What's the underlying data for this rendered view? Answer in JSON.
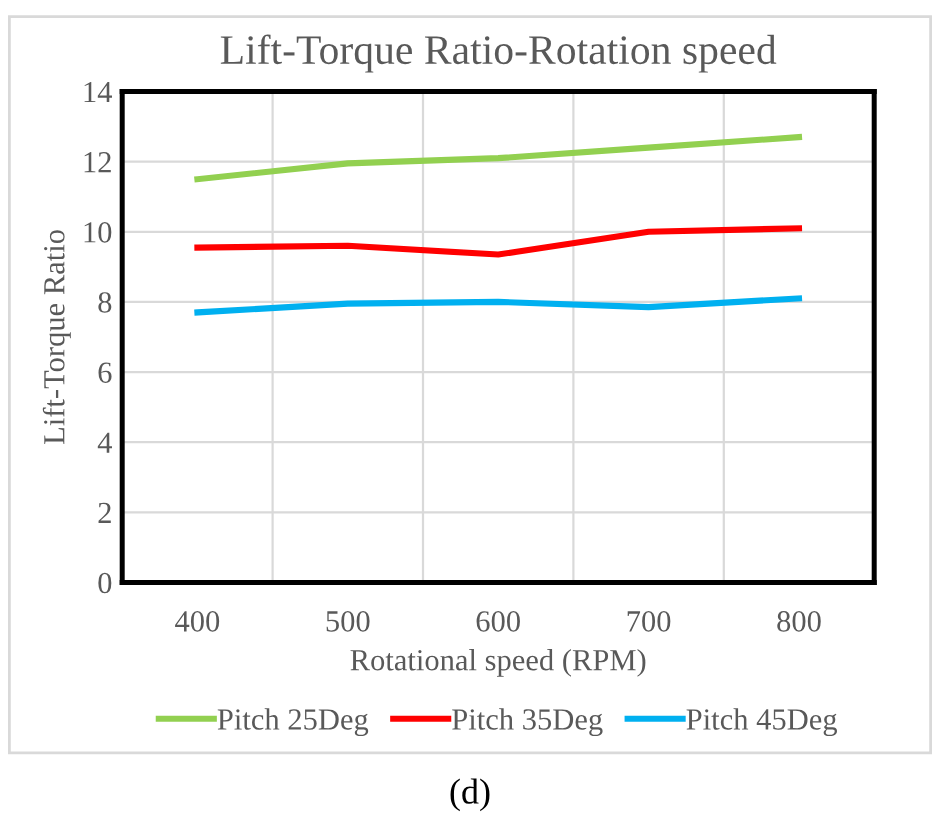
{
  "chart_data": {
    "type": "line",
    "title": "Lift-Torque Ratio-Rotation speed",
    "xlabel": "Rotational speed (RPM)",
    "ylabel": "Lift-Torque Ratio",
    "categories": [
      "400",
      "500",
      "600",
      "700",
      "800"
    ],
    "series": [
      {
        "name": "Pitch 25Deg",
        "color": "#92d050",
        "values": [
          11.5,
          11.95,
          12.1,
          12.4,
          12.7
        ]
      },
      {
        "name": "Pitch 35Deg",
        "color": "#ff0000",
        "values": [
          9.55,
          9.6,
          9.35,
          10.0,
          10.1
        ]
      },
      {
        "name": "Pitch 45Deg",
        "color": "#00b0f0",
        "values": [
          7.7,
          7.95,
          8.0,
          7.85,
          8.1
        ]
      }
    ],
    "ylim": [
      0,
      14
    ],
    "yticks": [
      0,
      2,
      4,
      6,
      8,
      10,
      12,
      14
    ],
    "grid": true,
    "legend": "bottom",
    "marker": "none",
    "line_style": "solid",
    "annotations": [
      "(d)"
    ]
  }
}
